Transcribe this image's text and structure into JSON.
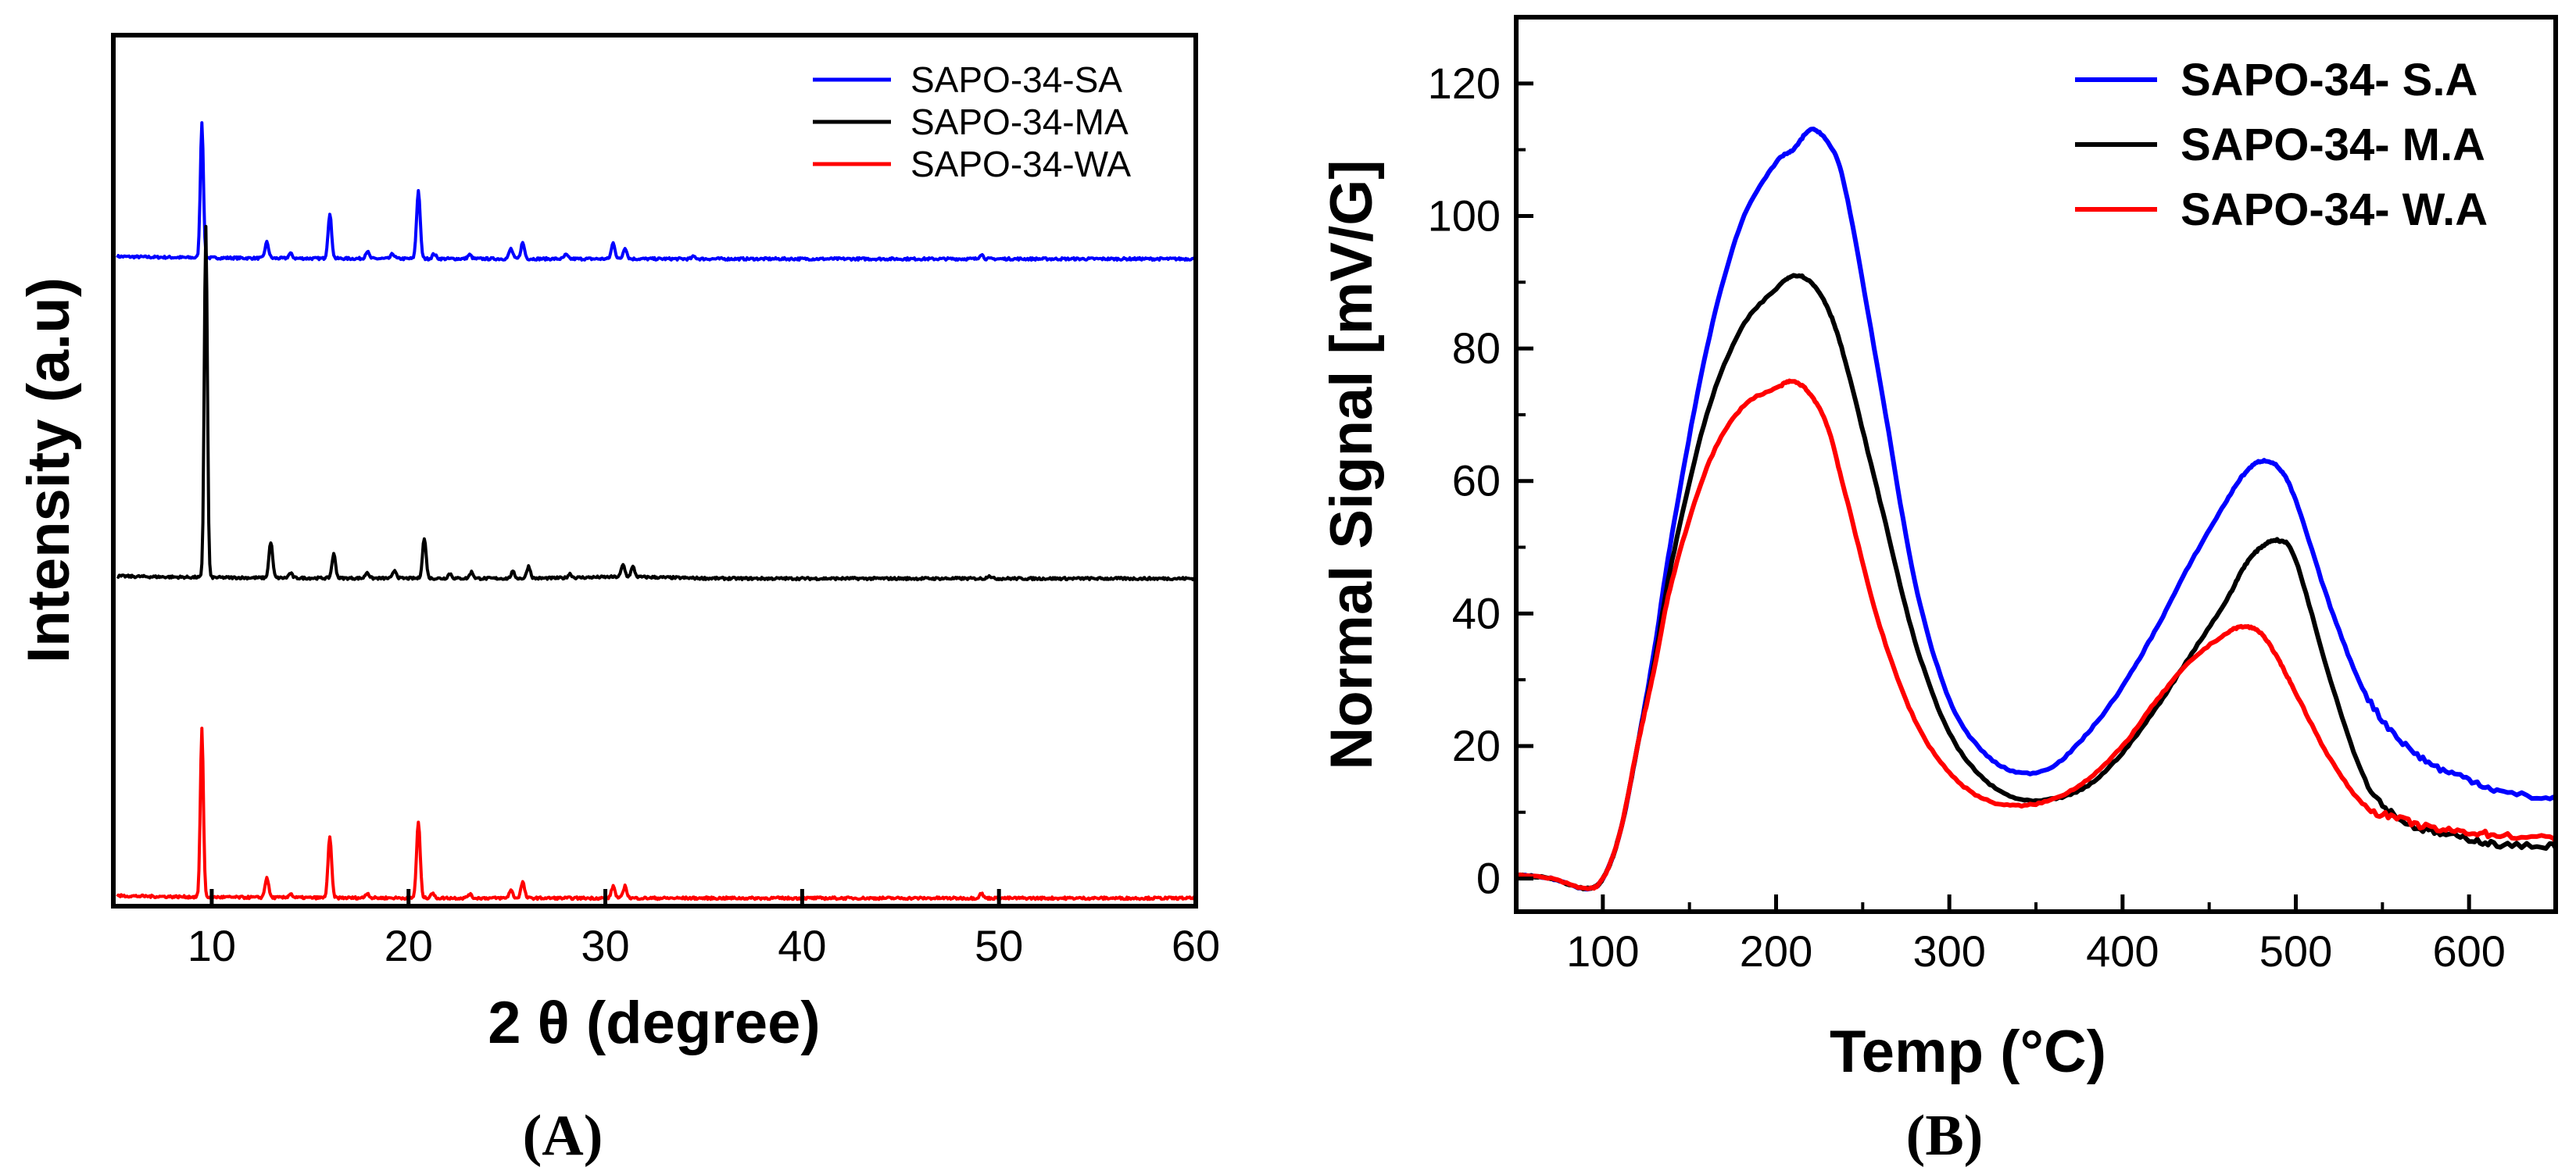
{
  "chart_data": [
    {
      "type": "line",
      "panel_label": "(A)",
      "xlabel": "2 θ (degree)",
      "ylabel": "Intensity (a.u)",
      "xlim": [
        5,
        60
      ],
      "x_ticks": [
        10,
        20,
        30,
        40,
        50,
        60
      ],
      "y_ticks_shown": false,
      "legend_position": "top-right",
      "colors": {
        "SAPO-34-SA": "#0000ff",
        "SAPO-34-MA": "#000000",
        "SAPO-34-WA": "#ff0000"
      },
      "note": "Stacked XRD patterns; each series has a vertical offset (arbitrary units). Peaks given as [2theta, height].",
      "series": [
        {
          "name": "SAPO-34-SA",
          "offset": 1.62,
          "peaks": [
            [
              9.5,
              0.34
            ],
            [
              12.8,
              0.04
            ],
            [
              14.0,
              0.012
            ],
            [
              16.0,
              0.11
            ],
            [
              17.9,
              0.018
            ],
            [
              19.2,
              0.012
            ],
            [
              20.5,
              0.17
            ],
            [
              21.3,
              0.012
            ],
            [
              23.1,
              0.01
            ],
            [
              25.2,
              0.025
            ],
            [
              25.8,
              0.04
            ],
            [
              28.0,
              0.01
            ],
            [
              30.4,
              0.04
            ],
            [
              31.0,
              0.028
            ],
            [
              34.5,
              0.006
            ],
            [
              49.1,
              0.012
            ]
          ]
        },
        {
          "name": "SAPO-34-MA",
          "offset": 0.82,
          "peaks": [
            [
              9.7,
              0.88
            ],
            [
              13.0,
              0.09
            ],
            [
              14.0,
              0.012
            ],
            [
              16.2,
              0.06
            ],
            [
              17.9,
              0.015
            ],
            [
              19.3,
              0.02
            ],
            [
              20.8,
              0.1
            ],
            [
              22.1,
              0.012
            ],
            [
              23.2,
              0.016
            ],
            [
              25.3,
              0.016
            ],
            [
              26.1,
              0.03
            ],
            [
              28.2,
              0.01
            ],
            [
              30.9,
              0.03
            ],
            [
              31.4,
              0.025
            ],
            [
              49.5,
              0.008
            ]
          ]
        },
        {
          "name": "SAPO-34-WA",
          "offset": 0.02,
          "peaks": [
            [
              9.5,
              0.42
            ],
            [
              12.8,
              0.05
            ],
            [
              14.0,
              0.01
            ],
            [
              16.0,
              0.15
            ],
            [
              17.9,
              0.012
            ],
            [
              20.5,
              0.19
            ],
            [
              21.2,
              0.012
            ],
            [
              23.1,
              0.01
            ],
            [
              25.2,
              0.02
            ],
            [
              25.8,
              0.04
            ],
            [
              30.4,
              0.03
            ],
            [
              31.0,
              0.03
            ],
            [
              49.1,
              0.012
            ]
          ]
        }
      ]
    },
    {
      "type": "line",
      "panel_label": "(B)",
      "xlabel": "Temp (°C)",
      "ylabel": "Normal Signal [mV/G]",
      "xlim": [
        50,
        650
      ],
      "ylim": [
        -5,
        130
      ],
      "x_ticks": [
        100,
        200,
        300,
        400,
        500,
        600
      ],
      "y_ticks": [
        0,
        20,
        40,
        60,
        80,
        100,
        120
      ],
      "legend_position": "top-right",
      "colors": {
        "SAPO-34- S.A": "#0000ff",
        "SAPO-34- M.A": "#000000",
        "SAPO-34- W.A": "#ff0000"
      },
      "x": [
        50,
        70,
        90,
        100,
        110,
        120,
        130,
        140,
        160,
        180,
        200,
        210,
        220,
        230,
        240,
        260,
        280,
        300,
        320,
        340,
        360,
        380,
        400,
        420,
        440,
        460,
        470,
        480,
        490,
        500,
        520,
        540,
        560,
        580,
        600,
        620,
        650
      ],
      "series": [
        {
          "name": "SAPO-34- S.A",
          "values": [
            0.5,
            0,
            -1.5,
            0,
            7,
            20,
            35,
            52,
            80,
            99,
            108,
            110,
            113,
            111,
            104,
            75,
            45,
            27,
            19,
            16,
            17,
            22,
            29,
            38,
            48,
            57,
            61,
            63,
            62,
            57,
            41,
            28,
            21,
            17,
            15,
            13,
            12
          ]
        },
        {
          "name": "SAPO-34- M.A",
          "values": [
            0.5,
            0,
            -1.5,
            0,
            7,
            20,
            33,
            48,
            70,
            83,
            89,
            91,
            90,
            86,
            78,
            57,
            36,
            22,
            15,
            12,
            12,
            14,
            19,
            26,
            34,
            42,
            47,
            50,
            51,
            48,
            30,
            15,
            9,
            7,
            6,
            5,
            5
          ]
        },
        {
          "name": "SAPO-34- W.A",
          "values": [
            0.5,
            0,
            -1.5,
            0,
            7,
            20,
            32,
            45,
            62,
            71,
            74,
            75,
            73,
            68,
            58,
            38,
            24,
            16,
            12,
            11,
            12,
            15,
            20,
            27,
            33,
            37,
            38,
            37,
            33,
            28,
            18,
            11,
            9,
            7.5,
            7,
            6.5,
            6
          ]
        }
      ]
    }
  ]
}
